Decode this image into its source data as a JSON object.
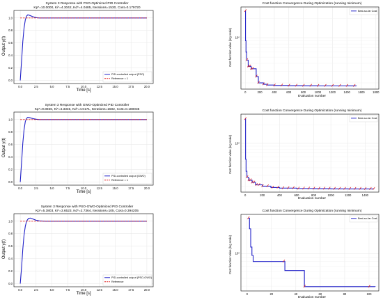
{
  "colors": {
    "series": "#1f1fc8",
    "reference": "#e02020",
    "grid": "#e6e6e6",
    "marker": "#e02020"
  },
  "chart_data": [
    {
      "id": "pso-response",
      "type": "line",
      "title": "System 3 Response with PSO-Optimized PID Controller",
      "subtitle": "Kp*=10.0000, Ki*=4.3042, Kd*=4.0485, Iterations=1530, Cost=0.179720",
      "xlabel": "Time [s]",
      "ylabel": "Output y(t)",
      "xlim": [
        -1,
        21
      ],
      "ylim": [
        -0.05,
        1.12
      ],
      "xticks": [
        0.0,
        2.5,
        5.0,
        7.5,
        10.0,
        12.5,
        15.0,
        17.5,
        20.0
      ],
      "xtick_labels": [
        "0.0",
        "2.5",
        "5.0",
        "7.5",
        "10.0",
        "12.5",
        "15.0",
        "17.5",
        "20.0"
      ],
      "yticks": [
        0.0,
        0.2,
        0.4,
        0.6,
        0.8,
        1.0
      ],
      "ytick_labels": [
        "0.0",
        "0.2",
        "0.4",
        "0.6",
        "0.8",
        "1.0"
      ],
      "legend_position": "lower-right",
      "grid": true,
      "series": [
        {
          "name": "PID-controlled output (PSO)",
          "style": "solid",
          "x": [
            0,
            0.2,
            0.4,
            0.6,
            0.8,
            1.0,
            1.2,
            1.5,
            2.0,
            2.5,
            3.0,
            4.0,
            6.0,
            10.0,
            20.0
          ],
          "y": [
            0,
            0.3,
            0.62,
            0.84,
            0.97,
            1.03,
            1.05,
            1.04,
            1.02,
            1.005,
            1.0,
            1.0,
            1.0,
            1.0,
            1.0
          ]
        },
        {
          "name": "Reference = 1",
          "style": "dashed",
          "x": [
            0,
            20
          ],
          "y": [
            1,
            1
          ]
        }
      ]
    },
    {
      "id": "gwo-response",
      "type": "line",
      "title": "System 3 Response with GWO-Optimized PID Controller",
      "subtitle": "Kp*=9.8926, Ki*=4.3345, Kd*=4.0171, Iterations=1502, Cost=0.180035",
      "xlabel": "Time [s]",
      "ylabel": "Output y(t)",
      "xlim": [
        -1,
        21
      ],
      "ylim": [
        -0.05,
        1.12
      ],
      "xticks": [
        0.0,
        2.5,
        5.0,
        7.5,
        10.0,
        12.5,
        15.0,
        17.5,
        20.0
      ],
      "xtick_labels": [
        "0.0",
        "2.5",
        "5.0",
        "7.5",
        "10.0",
        "12.5",
        "15.0",
        "17.5",
        "20.0"
      ],
      "yticks": [
        0.0,
        0.2,
        0.4,
        0.6,
        0.8,
        1.0
      ],
      "ytick_labels": [
        "0.0",
        "0.2",
        "0.4",
        "0.6",
        "0.8",
        "1.0"
      ],
      "legend_position": "lower-right",
      "grid": true,
      "series": [
        {
          "name": "PID-controlled output (GWO)",
          "style": "solid",
          "x": [
            0,
            0.2,
            0.4,
            0.6,
            0.8,
            1.0,
            1.2,
            1.5,
            2.0,
            2.5,
            3.0,
            4.0,
            6.0,
            10.0,
            20.0
          ],
          "y": [
            0,
            0.3,
            0.62,
            0.84,
            0.97,
            1.02,
            1.035,
            1.03,
            1.015,
            1.005,
            1.0,
            1.0,
            1.0,
            1.0,
            1.0
          ]
        },
        {
          "name": "Reference = 1",
          "style": "dashed",
          "x": [
            0,
            20
          ],
          "y": [
            1,
            1
          ]
        }
      ]
    },
    {
      "id": "psogwo-response",
      "type": "line",
      "title": "System 3 Response with PSO-GWO-Optimized PID Controller",
      "subtitle": "Kp*=5.3803, Ki*=3.6523, Kd*=2.7364, Iterations=105, Cost=0.394205",
      "xlabel": "Time [s]",
      "ylabel": "Output y(t)",
      "xlim": [
        -1,
        21
      ],
      "ylim": [
        -0.05,
        1.12
      ],
      "xticks": [
        0.0,
        2.5,
        5.0,
        7.5,
        10.0,
        12.5,
        15.0,
        17.5,
        20.0
      ],
      "xtick_labels": [
        "0.0",
        "2.5",
        "5.0",
        "7.5",
        "10.0",
        "12.5",
        "15.0",
        "17.5",
        "20.0"
      ],
      "yticks": [
        0.0,
        0.2,
        0.4,
        0.6,
        0.8,
        1.0
      ],
      "ytick_labels": [
        "0.0",
        "0.2",
        "0.4",
        "0.6",
        "0.8",
        "1.0"
      ],
      "legend_position": "lower-right",
      "grid": true,
      "series": [
        {
          "name": "PID-controlled output (PSO-GWO)",
          "style": "solid",
          "x": [
            0,
            0.2,
            0.4,
            0.6,
            0.8,
            1.0,
            1.3,
            1.6,
            2.0,
            2.5,
            3.0,
            4.0,
            6.0,
            10.0,
            20.0
          ],
          "y": [
            0,
            0.25,
            0.55,
            0.78,
            0.92,
            1.0,
            1.045,
            1.05,
            1.035,
            1.015,
            1.005,
            1.0,
            1.0,
            1.0,
            1.0
          ]
        },
        {
          "name": "Reference",
          "style": "dashed",
          "x": [
            0,
            20
          ],
          "y": [
            1,
            1
          ]
        }
      ]
    },
    {
      "id": "pso-cost",
      "type": "line",
      "title": "Cost function Convergence During Optimization (running minimum)",
      "xlabel": "Evaluation number",
      "ylabel": "Cost function value (log scale)",
      "y_scale": "log",
      "xlim": [
        -60,
        1840
      ],
      "ylim": [
        0.16,
        3.0
      ],
      "xticks": [
        0,
        200,
        400,
        600,
        800,
        1000,
        1200,
        1400,
        1600,
        1800
      ],
      "xtick_labels": [
        "0",
        "200",
        "400",
        "600",
        "800",
        "1000",
        "1200",
        "1400",
        "1600",
        "1800"
      ],
      "yticks": [
        1
      ],
      "ytick_labels": [
        "10⁰"
      ],
      "legend_position": "top-right",
      "grid": true,
      "series": [
        {
          "name": "Best-so-far Cost",
          "style": "step",
          "x": [
            0,
            3,
            10,
            20,
            40,
            60,
            80,
            100,
            150,
            180,
            250,
            300,
            400,
            600,
            800,
            1000,
            1200,
            1400,
            1530
          ],
          "y": [
            2.6,
            0.9,
            0.6,
            0.45,
            0.36,
            0.36,
            0.33,
            0.33,
            0.25,
            0.2,
            0.19,
            0.185,
            0.182,
            0.181,
            0.1805,
            0.18,
            0.18,
            0.1798,
            0.1797
          ],
          "markers_x": [
            0,
            20,
            40,
            60,
            80,
            100,
            150,
            180,
            250,
            300,
            400,
            500,
            600,
            700,
            800,
            900,
            1000,
            1100,
            1200,
            1300,
            1400,
            1500
          ]
        }
      ]
    },
    {
      "id": "gwo-cost",
      "type": "line",
      "title": "Cost function Convergence During Optimization (running minimum)",
      "xlabel": "Evaluation number",
      "ylabel": "Cost function value (log scale)",
      "y_scale": "log",
      "xlim": [
        -50,
        1560
      ],
      "ylim": [
        0.16,
        3.0
      ],
      "xticks": [
        0,
        200,
        400,
        600,
        800,
        1000,
        1200,
        1400
      ],
      "xtick_labels": [
        "0",
        "200",
        "400",
        "600",
        "800",
        "1000",
        "1200",
        "1400"
      ],
      "yticks": [
        1
      ],
      "ytick_labels": [
        "10⁰"
      ],
      "legend_position": "top-right",
      "grid": true,
      "series": [
        {
          "name": "Best-so-far Cost",
          "style": "step",
          "x": [
            0,
            4,
            10,
            20,
            40,
            80,
            120,
            200,
            300,
            400,
            600,
            800,
            1000,
            1200,
            1400,
            1502
          ],
          "y": [
            2.5,
            0.55,
            0.35,
            0.28,
            0.25,
            0.23,
            0.21,
            0.2,
            0.19,
            0.186,
            0.183,
            0.182,
            0.181,
            0.1805,
            0.1801,
            0.18
          ],
          "markers_x": [
            0,
            20,
            40,
            60,
            80,
            100,
            130,
            160,
            200,
            260,
            320,
            380,
            440,
            500,
            560,
            620,
            680,
            740,
            800,
            860,
            920,
            980,
            1040,
            1100,
            1160,
            1220,
            1280,
            1340,
            1400,
            1460,
            1500
          ]
        }
      ]
    },
    {
      "id": "psogwo-cost",
      "type": "line",
      "title": "Cost function Convergence During Optimization (running minimum)",
      "xlabel": "Evaluation number",
      "ylabel": "Cost function value (log scale)",
      "y_scale": "log",
      "xlim": [
        -5,
        108
      ],
      "ylim": [
        0.35,
        3.0
      ],
      "xticks": [
        0,
        20,
        40,
        60,
        80,
        100
      ],
      "xtick_labels": [
        "0",
        "20",
        "40",
        "60",
        "80",
        "100"
      ],
      "yticks": [
        1
      ],
      "ytick_labels": [
        "10⁰"
      ],
      "legend_position": "top-right",
      "grid": true,
      "series": [
        {
          "name": "Best-so-far Cost",
          "style": "step",
          "x": [
            1,
            2,
            3,
            4,
            5,
            30,
            31,
            46,
            47,
            105
          ],
          "y": [
            2.7,
            2.0,
            1.2,
            0.95,
            0.8,
            0.8,
            0.62,
            0.62,
            0.395,
            0.394
          ],
          "markers_x": [
            1,
            30,
            47,
            100
          ]
        }
      ]
    }
  ]
}
